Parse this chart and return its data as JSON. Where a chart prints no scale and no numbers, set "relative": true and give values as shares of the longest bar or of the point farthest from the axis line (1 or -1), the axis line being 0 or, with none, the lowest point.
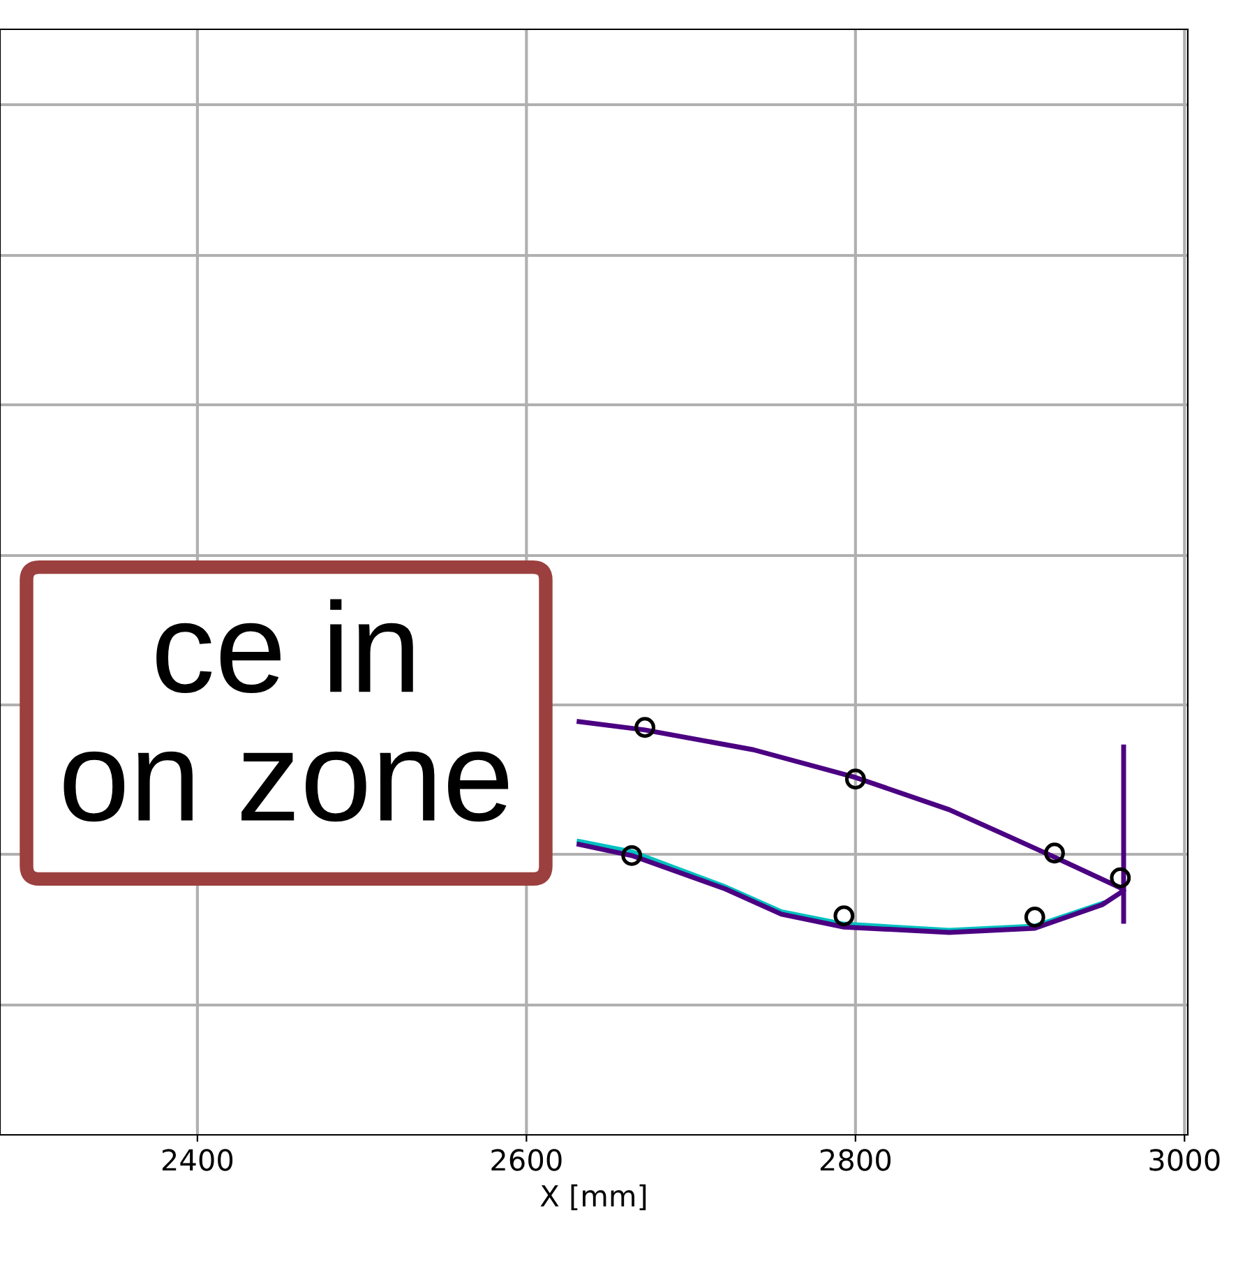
{
  "chart_data": {
    "type": "line",
    "relative": true,
    "xlabel": "X [mm]",
    "xlim": [
      2280,
      3002
    ],
    "xticks": [
      2400,
      2600,
      2800,
      3000
    ],
    "grid": true,
    "tick_labels": "x",
    "annotations": [
      "ce in\non zone"
    ],
    "series": [
      {
        "color": "#00c0c0",
        "marker": "none",
        "x": [
          2950,
          2909,
          2857,
          2793,
          2755,
          2721,
          2664,
          2632
        ],
        "values": [
          0.56,
          0.505,
          0.495,
          0.51,
          0.54,
          0.6,
          0.685,
          0.71
        ]
      },
      {
        "color": "#4b0082",
        "marker": "none",
        "x": [
          2632,
          2672,
          2738,
          2800,
          2857,
          2891,
          2921,
          2961,
          2963,
          2950,
          2909,
          2857,
          2793,
          2755,
          2721,
          2664,
          2632
        ],
        "values": [
          1.0,
          0.98,
          0.932,
          0.865,
          0.787,
          0.726,
          0.672,
          0.598,
          0.591,
          0.557,
          0.5,
          0.49,
          0.503,
          0.534,
          0.595,
          0.676,
          0.703
        ]
      },
      {
        "color": "#4b0082",
        "marker": "none",
        "x": [
          2963,
          2963
        ],
        "values": [
          0.939,
          0.517
        ]
      },
      {
        "type": "scatter",
        "color": "#000000",
        "marker": "circle",
        "x": [
          2672,
          2800,
          2921,
          2961,
          2664,
          2793,
          2909
        ],
        "values": [
          0.986,
          0.861,
          0.682,
          0.622,
          0.676,
          0.53,
          0.527
        ]
      }
    ]
  }
}
